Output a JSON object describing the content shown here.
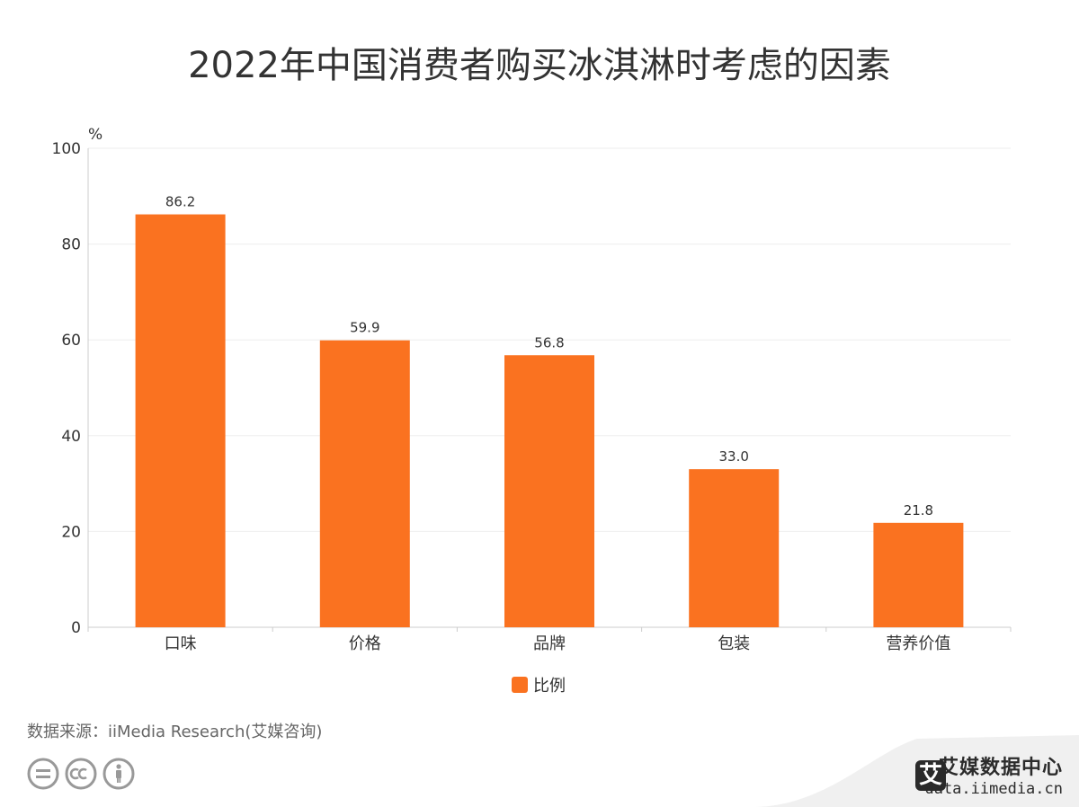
{
  "title": "2022年中国消费者购买冰淇淋时考虑的因素",
  "source": "数据来源：iiMedia Research(艾媒咨询)",
  "brand": {
    "name": "艾媒数据中心",
    "badge": "艾",
    "url": "data.iimedia.cn"
  },
  "icons": [
    "equals-circle-icon",
    "cc-icon",
    "person-icon"
  ],
  "colors": {
    "bar": "#fa7220",
    "axis": "#cccccc",
    "grid": "#eeeeee",
    "text": "#333333"
  },
  "chart_data": {
    "type": "bar",
    "unit_label": "%",
    "categories": [
      "口味",
      "价格",
      "品牌",
      "包装",
      "营养价值"
    ],
    "series": [
      {
        "name": "比例",
        "values": [
          86.2,
          59.9,
          56.8,
          33.0,
          21.8
        ]
      }
    ],
    "value_labels": [
      "86.2",
      "59.9",
      "56.8",
      "33.0",
      "21.8"
    ],
    "ylim": [
      0,
      100
    ],
    "yticks": [
      0,
      20,
      40,
      60,
      80,
      100
    ],
    "grid": true,
    "legend_position": "bottom-center"
  }
}
